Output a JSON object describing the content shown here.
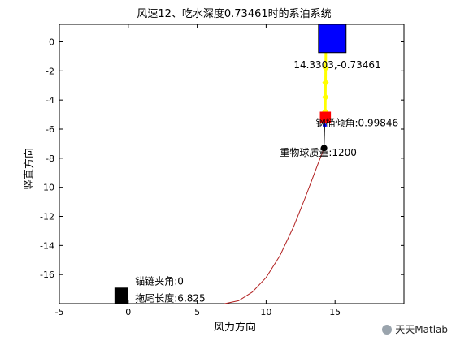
{
  "chart_data": {
    "type": "line",
    "title": "风速12、吃水深度0.73461时的系泊系统",
    "xlabel": "风力方向",
    "ylabel": "竖直方向",
    "xlim": [
      -5,
      20
    ],
    "ylim": [
      -18,
      1.2
    ],
    "xticks": [
      -5,
      0,
      5,
      10,
      15
    ],
    "yticks": [
      0,
      -2,
      -4,
      -6,
      -8,
      -10,
      -12,
      -14,
      -16
    ],
    "grid": false,
    "buoy": {
      "x_range": [
        13.8,
        15.8
      ],
      "y_range": [
        -0.74,
        1.2
      ],
      "color": "#0000ff"
    },
    "pipes": [
      {
        "x": [
          14.33,
          14.32
        ],
        "y": [
          -0.73461,
          -1.8
        ]
      },
      {
        "x": [
          14.32,
          14.31
        ],
        "y": [
          -1.8,
          -2.8
        ]
      },
      {
        "x": [
          14.31,
          14.3
        ],
        "y": [
          -2.8,
          -3.8
        ]
      },
      {
        "x": [
          14.3,
          14.29
        ],
        "y": [
          -3.8,
          -4.8
        ]
      }
    ],
    "pipe_color": "#ffff00",
    "barrel": {
      "x_range": [
        13.9,
        14.7
      ],
      "y_range": [
        -5.6,
        -4.8
      ],
      "color": "#ff0000"
    },
    "barrel_joint": {
      "x": 14.25,
      "y": -5.75,
      "color": "#0000ff"
    },
    "ball_rope": {
      "x": [
        14.25,
        14.2
      ],
      "y": [
        -5.75,
        -7.3
      ]
    },
    "weight_ball": {
      "x": 14.2,
      "y": -7.3,
      "color": "#000000"
    },
    "anchor": {
      "x_range": [
        -1.0,
        0.0
      ],
      "y_range": [
        -18,
        -16.9
      ],
      "color": "#000000"
    },
    "chain": {
      "color": "#b22222",
      "x": [
        7.0,
        8.0,
        9.0,
        10.0,
        11.0,
        12.0,
        12.8,
        13.4,
        13.8,
        14.05,
        14.2
      ],
      "y": [
        -18,
        -17.8,
        -17.2,
        -16.2,
        -14.7,
        -12.7,
        -10.8,
        -9.3,
        -8.3,
        -7.7,
        -7.3
      ]
    },
    "annotations": [
      {
        "id": "buoy-coord",
        "text": "14.3303,-0.73461",
        "x": 12.0,
        "y": -1.8
      },
      {
        "id": "tilt-angle",
        "text": "钢桶倾角:0.99846",
        "x": 13.6,
        "y": -5.8
      },
      {
        "id": "ball-mass",
        "text": "重物球质量:1200",
        "x": 11.0,
        "y": -7.85
      },
      {
        "id": "chain-angle",
        "text": "锚链夹角:0",
        "x": 0.5,
        "y": -16.7
      },
      {
        "id": "drag-length",
        "text": "拖尾长度:6.825",
        "x": 0.5,
        "y": -17.85
      }
    ]
  },
  "watermark": {
    "text": "天天Matlab"
  }
}
